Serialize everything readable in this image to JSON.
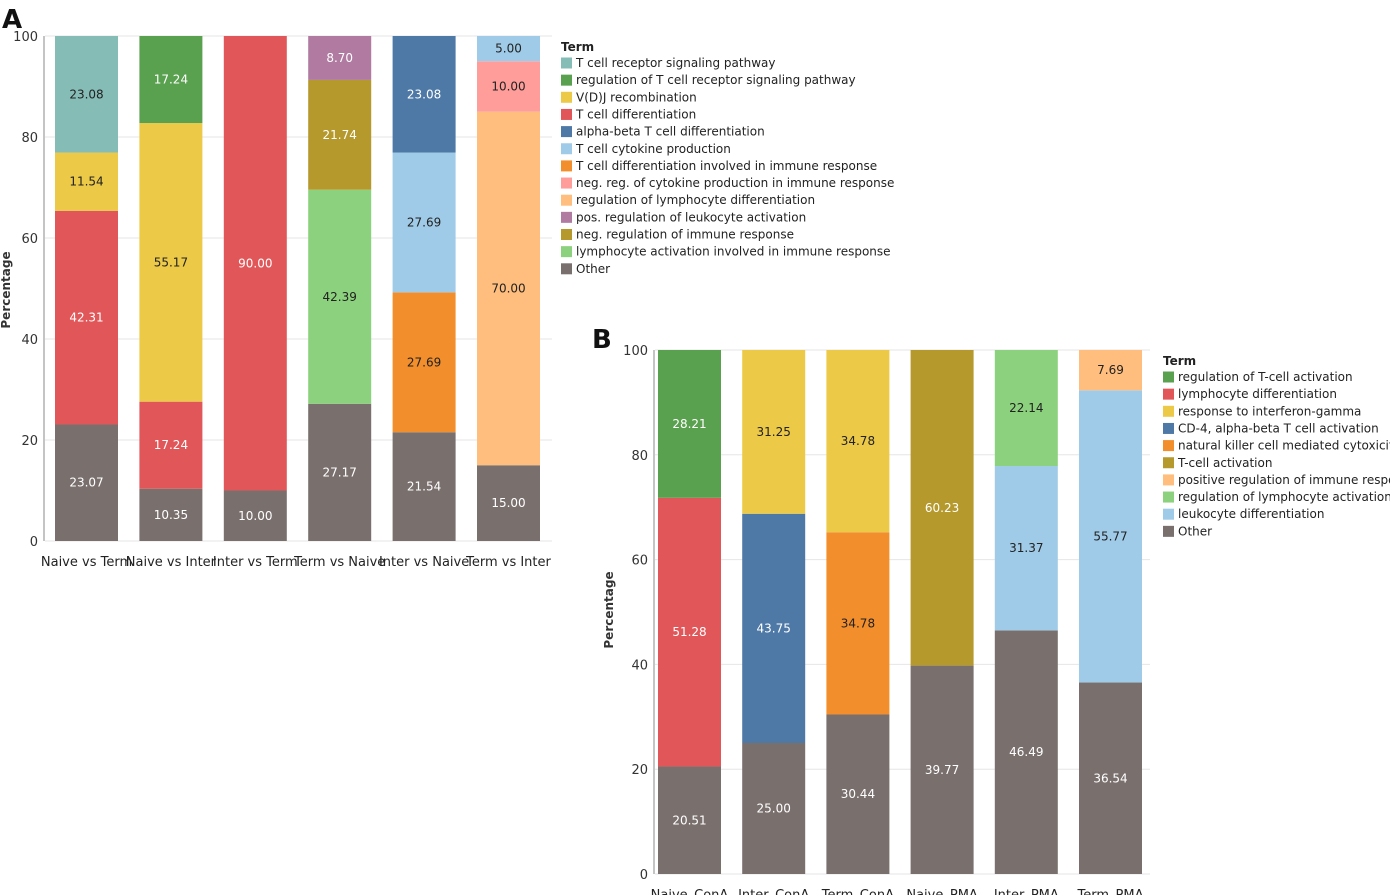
{
  "chart_data": [
    {
      "type": "bar",
      "stacked": true,
      "panel_label": "A",
      "title": "",
      "xlabel": "",
      "ylabel": "Percentage",
      "ylim": [
        0,
        100
      ],
      "yticks": [
        0,
        20,
        40,
        60,
        80,
        100
      ],
      "categories": [
        "Naive vs Term",
        "Naive vs Inter",
        "Inter vs Term",
        "Term vs Naive",
        "Inter vs Naive",
        "Term vs Inter"
      ],
      "legend_title": "Term",
      "legend_position": "right",
      "legend": [
        {
          "name": "T cell receptor signaling pathway",
          "color": "#86bcb6"
        },
        {
          "name": "regulation of T cell receptor signaling pathway",
          "color": "#59a14f"
        },
        {
          "name": "V(D)J recombination",
          "color": "#edc948"
        },
        {
          "name": "T cell differentiation",
          "color": "#e15759"
        },
        {
          "name": "alpha-beta T cell differentiation",
          "color": "#4e79a7"
        },
        {
          "name": "T cell cytokine production",
          "color": "#a0cbe8"
        },
        {
          "name": "T cell differentiation involved in immune response",
          "color": "#f28e2b"
        },
        {
          "name": "neg. reg. of cytokine production in immune response",
          "color": "#ff9d9a"
        },
        {
          "name": "regulation of lymphocyte differentiation",
          "color": "#ffbe7d"
        },
        {
          "name": "pos. regulation of leukocyte activation",
          "color": "#b07aa1"
        },
        {
          "name": "neg. regulation of immune response",
          "color": "#b6992d"
        },
        {
          "name": "lymphocyte activation involved in immune response",
          "color": "#8cd17d"
        },
        {
          "name": "Other",
          "color": "#79706e"
        }
      ],
      "bars": [
        {
          "category": "Naive vs Term",
          "segments": [
            {
              "term": "Other",
              "value": 23.07,
              "label": "23.07"
            },
            {
              "term": "T cell differentiation",
              "value": 42.31,
              "label": "42.31"
            },
            {
              "term": "V(D)J recombination",
              "value": 11.54,
              "label": "11.54"
            },
            {
              "term": "T cell receptor signaling pathway",
              "value": 23.08,
              "label": "23.08"
            }
          ]
        },
        {
          "category": "Naive vs Inter",
          "segments": [
            {
              "term": "Other",
              "value": 10.35,
              "label": "10.35"
            },
            {
              "term": "T cell differentiation",
              "value": 17.24,
              "label": "17.24"
            },
            {
              "term": "V(D)J recombination",
              "value": 55.17,
              "label": "55.17"
            },
            {
              "term": "regulation of T cell receptor signaling pathway",
              "value": 17.24,
              "label": "17.24"
            }
          ]
        },
        {
          "category": "Inter vs Term",
          "segments": [
            {
              "term": "Other",
              "value": 10.0,
              "label": "10.00"
            },
            {
              "term": "T cell differentiation",
              "value": 90.0,
              "label": "90.00"
            }
          ]
        },
        {
          "category": "Term vs Naive",
          "segments": [
            {
              "term": "Other",
              "value": 27.17,
              "label": "27.17"
            },
            {
              "term": "lymphocyte activation involved in immune response",
              "value": 42.39,
              "label": "42.39"
            },
            {
              "term": "neg. regulation of immune response",
              "value": 21.74,
              "label": "21.74"
            },
            {
              "term": "pos. regulation of leukocyte activation",
              "value": 8.7,
              "label": "8.70"
            }
          ]
        },
        {
          "category": "Inter vs Naive",
          "segments": [
            {
              "term": "Other",
              "value": 21.54,
              "label": "21.54"
            },
            {
              "term": "T cell differentiation involved in immune response",
              "value": 27.69,
              "label": "27.69"
            },
            {
              "term": "T cell cytokine production",
              "value": 27.69,
              "label": "27.69"
            },
            {
              "term": "alpha-beta T cell differentiation",
              "value": 23.08,
              "label": "23.08"
            }
          ]
        },
        {
          "category": "Term vs Inter",
          "segments": [
            {
              "term": "Other",
              "value": 15.0,
              "label": "15.00"
            },
            {
              "term": "regulation of lymphocyte differentiation",
              "value": 70.0,
              "label": "70.00"
            },
            {
              "term": "neg. reg. of cytokine production in immune response",
              "value": 10.0,
              "label": "10.00"
            },
            {
              "term": "T cell cytokine production",
              "value": 5.0,
              "label": "5.00"
            }
          ]
        }
      ]
    },
    {
      "type": "bar",
      "stacked": true,
      "panel_label": "B",
      "title": "",
      "xlabel": "",
      "ylabel": "Percentage",
      "ylim": [
        0,
        100
      ],
      "yticks": [
        0,
        20,
        40,
        60,
        80,
        100
      ],
      "categories": [
        "Naive_ConA",
        "Inter_ConA",
        "Term_ConA",
        "Naive_PMA",
        "Inter_PMA",
        "Term_PMA"
      ],
      "legend_title": "Term",
      "legend_position": "right",
      "legend": [
        {
          "name": "regulation of T-cell activation",
          "color": "#59a14f"
        },
        {
          "name": "lymphocyte differentiation",
          "color": "#e15759"
        },
        {
          "name": "response to interferon-gamma",
          "color": "#edc948"
        },
        {
          "name": "CD-4, alpha-beta T cell activation",
          "color": "#4e79a7"
        },
        {
          "name": "natural killer cell mediated cytoxicity",
          "color": "#f28e2b"
        },
        {
          "name": "T-cell activation",
          "color": "#b6992d"
        },
        {
          "name": "positive regulation of immune response",
          "color": "#ffbe7d"
        },
        {
          "name": "regulation of lymphocyte activation",
          "color": "#8cd17d"
        },
        {
          "name": "leukocyte differentiation",
          "color": "#a0cbe8"
        },
        {
          "name": "Other",
          "color": "#79706e"
        }
      ],
      "bars": [
        {
          "category": "Naive_ConA",
          "segments": [
            {
              "term": "Other",
              "value": 20.51,
              "label": "20.51"
            },
            {
              "term": "lymphocyte differentiation",
              "value": 51.28,
              "label": "51.28"
            },
            {
              "term": "regulation of T-cell activation",
              "value": 28.21,
              "label": "28.21"
            }
          ]
        },
        {
          "category": "Inter_ConA",
          "segments": [
            {
              "term": "Other",
              "value": 25.0,
              "label": "25.00"
            },
            {
              "term": "CD-4, alpha-beta T cell activation",
              "value": 43.75,
              "label": "43.75"
            },
            {
              "term": "response to interferon-gamma",
              "value": 31.25,
              "label": "31.25"
            }
          ]
        },
        {
          "category": "Term_ConA",
          "segments": [
            {
              "term": "Other",
              "value": 30.44,
              "label": "30.44"
            },
            {
              "term": "natural killer cell mediated cytoxicity",
              "value": 34.78,
              "label": "34.78"
            },
            {
              "term": "response to interferon-gamma",
              "value": 34.78,
              "label": "34.78"
            }
          ]
        },
        {
          "category": "Naive_PMA",
          "segments": [
            {
              "term": "Other",
              "value": 39.77,
              "label": "39.77"
            },
            {
              "term": "T-cell activation",
              "value": 60.23,
              "label": "60.23"
            }
          ]
        },
        {
          "category": "Inter_PMA",
          "segments": [
            {
              "term": "Other",
              "value": 46.49,
              "label": "46.49"
            },
            {
              "term": "leukocyte differentiation",
              "value": 31.37,
              "label": "31.37"
            },
            {
              "term": "regulation of lymphocyte activation",
              "value": 22.14,
              "label": "22.14"
            }
          ]
        },
        {
          "category": "Term_PMA",
          "segments": [
            {
              "term": "Other",
              "value": 36.54,
              "label": "36.54"
            },
            {
              "term": "leukocyte differentiation",
              "value": 55.77,
              "label": "55.77"
            },
            {
              "term": "positive regulation of immune response",
              "value": 7.69,
              "label": "7.69"
            }
          ]
        }
      ]
    }
  ]
}
